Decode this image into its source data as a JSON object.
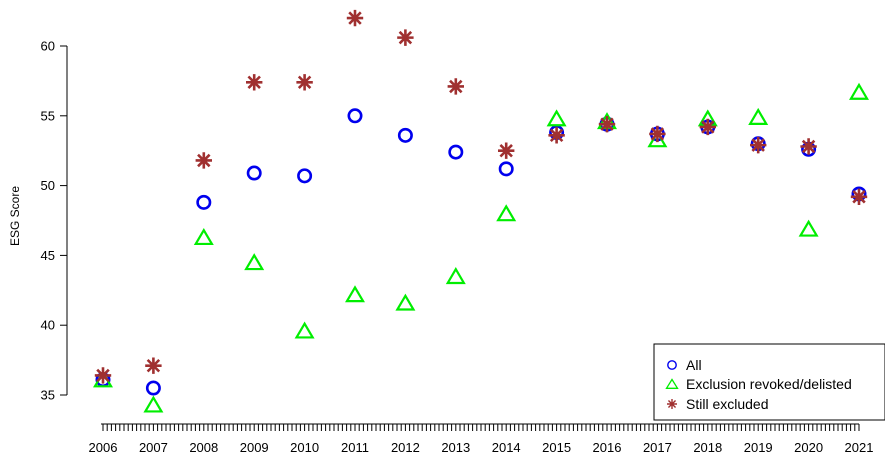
{
  "chart_data": {
    "type": "scatter",
    "title": "",
    "xlabel": "",
    "ylabel": "ESG Score",
    "x": [
      2006,
      2007,
      2008,
      2009,
      2010,
      2011,
      2012,
      2013,
      2014,
      2015,
      2016,
      2017,
      2018,
      2019,
      2020,
      2021
    ],
    "x_tick_labels": [
      "2006",
      "2007",
      "2008",
      "2009",
      "2010",
      "2011",
      "2012",
      "2013",
      "2014",
      "2015",
      "2016",
      "2017",
      "2018",
      "2019",
      "2020",
      "2021"
    ],
    "y_ticks": [
      35,
      40,
      45,
      50,
      55,
      60
    ],
    "y_tick_labels": [
      "35",
      "40",
      "45",
      "50",
      "55",
      "60"
    ],
    "ylim": [
      33.5,
      62.5
    ],
    "grid": false,
    "legend_position": "bottom-right",
    "series": [
      {
        "name": "All",
        "marker": "circle",
        "color": "#0000ee",
        "values": [
          36.1,
          35.5,
          48.8,
          50.9,
          50.7,
          55.0,
          53.6,
          52.4,
          51.2,
          53.8,
          54.4,
          53.7,
          54.2,
          53.0,
          52.6,
          49.4
        ]
      },
      {
        "name": "Exclusion revoked/delisted",
        "marker": "triangle",
        "color": "#00ee00",
        "values": [
          36.0,
          34.2,
          46.2,
          44.4,
          39.5,
          42.1,
          41.5,
          43.4,
          47.9,
          54.7,
          54.5,
          53.2,
          54.7,
          54.8,
          46.8,
          56.6
        ]
      },
      {
        "name": "Still excluded",
        "marker": "asterisk",
        "color": "#a03030",
        "values": [
          36.4,
          37.1,
          51.8,
          57.4,
          57.4,
          62.0,
          60.6,
          57.1,
          52.5,
          53.6,
          54.4,
          53.7,
          54.2,
          52.9,
          52.8,
          49.2
        ]
      }
    ]
  }
}
